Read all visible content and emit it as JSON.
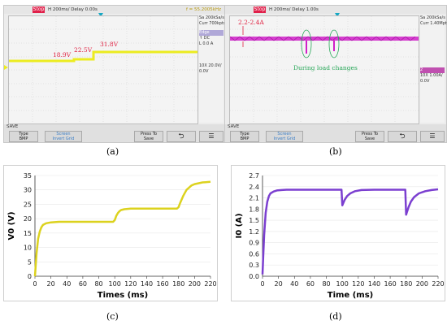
{
  "caption_a": "(a)",
  "caption_b": "(b)",
  "caption_c": "(c)",
  "caption_d": "(d)",
  "scope_a": {
    "status": "Stop",
    "timebase": "H 200ms/   Delay 0.00s",
    "freq": "f = 55.2005kHz",
    "sample_rate": "Sa 200kSa/s",
    "current": "Curr 700kpts",
    "voltage_labels": [
      "18.9V",
      "22.5V",
      "31.8V"
    ],
    "side": [
      "Edge",
      "↑  DC",
      "L      0.0 A",
      "10X   20.0V/",
      "        0.0V"
    ],
    "save": "SAVE",
    "keys": [
      "Type\nBMP",
      "Screen\nInvert Grid",
      "Press To\nSave",
      "⮌",
      "☰"
    ]
  },
  "scope_b": {
    "status": "Stop",
    "timebase": "H 200ms/   Delay 1.00s",
    "sample_rate": "Sa 200kSa/s",
    "current": "Curr 1.40Mpts",
    "current_label": "2.2-2.4A",
    "annotation": "During load changes",
    "side": [
      "2  ",
      "10X  1.00A/",
      "        0.0V"
    ],
    "save": "SAVE",
    "keys": [
      "Type\nBMP",
      "Screen\nInvert Grid",
      "Press To\nSave",
      "⮌",
      "☰"
    ]
  },
  "colors": {
    "voltage": "#dcd21e",
    "current": "#7b3fd0",
    "scope_yellow": "#ecec20",
    "scope_magenta": "#d020c8",
    "annotation": "#2aa85a",
    "label_red": "#e02040"
  },
  "chart_data": [
    {
      "type": "line",
      "ylabel": "V0 (V)",
      "xlabel": "Times (ms)",
      "xlim": [
        0,
        220
      ],
      "ylim": [
        0,
        35
      ],
      "xticks": [
        0,
        20,
        40,
        60,
        80,
        100,
        120,
        140,
        160,
        180,
        200,
        220
      ],
      "yticks": [
        0,
        5,
        10,
        15,
        20,
        25,
        30,
        35
      ],
      "series": [
        {
          "x": [
            0,
            2,
            4,
            6,
            8,
            10,
            14,
            20,
            30,
            40,
            60,
            80,
            98,
            100,
            102,
            104,
            106,
            108,
            112,
            120,
            140,
            160,
            178,
            180,
            182,
            186,
            190,
            196,
            200,
            210,
            220
          ],
          "y": [
            0,
            8,
            13,
            15.5,
            17,
            17.8,
            18.4,
            18.7,
            18.9,
            18.9,
            18.9,
            18.9,
            18.9,
            19.5,
            21,
            22,
            22.6,
            23,
            23.3,
            23.5,
            23.5,
            23.5,
            23.5,
            24,
            25.5,
            28,
            30,
            31.5,
            32,
            32.6,
            32.8
          ]
        }
      ]
    },
    {
      "type": "line",
      "ylabel": "I0 (A)",
      "xlabel": "Time (ms)",
      "xlim": [
        0,
        220
      ],
      "ylim": [
        0,
        2.7
      ],
      "xticks": [
        0,
        20,
        40,
        60,
        80,
        100,
        120,
        140,
        160,
        180,
        200,
        220
      ],
      "yticks": [
        0,
        0.3,
        0.6,
        0.9,
        1.2,
        1.5,
        1.8,
        2.1,
        2.4,
        2.7
      ],
      "series": [
        {
          "x": [
            0,
            1,
            2,
            4,
            6,
            8,
            10,
            14,
            18,
            24,
            30,
            40,
            60,
            80,
            99,
            100,
            101,
            103,
            106,
            110,
            116,
            124,
            140,
            160,
            179,
            180,
            181,
            183,
            186,
            190,
            196,
            204,
            212,
            220
          ],
          "y": [
            0.05,
            0.6,
            1.1,
            1.7,
            2.0,
            2.15,
            2.22,
            2.27,
            2.3,
            2.31,
            2.32,
            2.32,
            2.32,
            2.32,
            2.32,
            1.9,
            1.95,
            2.05,
            2.15,
            2.22,
            2.28,
            2.31,
            2.32,
            2.32,
            2.32,
            1.65,
            1.72,
            1.85,
            2.0,
            2.12,
            2.22,
            2.28,
            2.31,
            2.33
          ]
        }
      ]
    }
  ]
}
